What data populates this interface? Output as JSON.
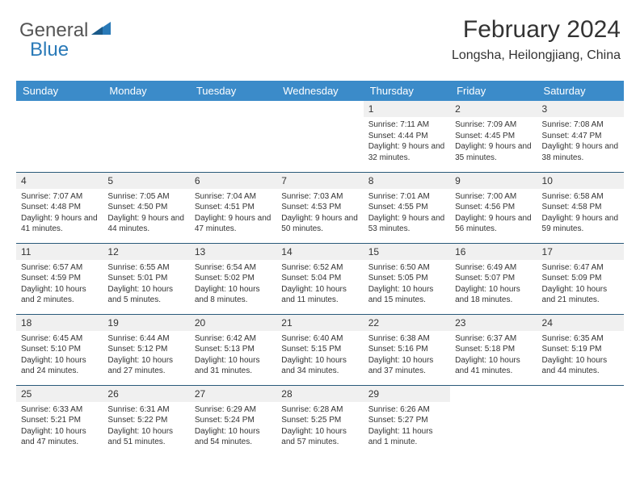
{
  "logo": {
    "text1": "General",
    "text2": "Blue"
  },
  "header": {
    "title": "February 2024",
    "location": "Longsha, Heilongjiang, China"
  },
  "colors": {
    "header_bg": "#3b8bc9",
    "header_text": "#ffffff",
    "row_divider": "#2a5a7a",
    "daynum_bg": "#f0f0f0",
    "logo_blue": "#2a7ab8"
  },
  "weekdays": [
    "Sunday",
    "Monday",
    "Tuesday",
    "Wednesday",
    "Thursday",
    "Friday",
    "Saturday"
  ],
  "weeks": [
    [
      {
        "empty": true
      },
      {
        "empty": true
      },
      {
        "empty": true
      },
      {
        "empty": true
      },
      {
        "num": "1",
        "sunrise": "7:11 AM",
        "sunset": "4:44 PM",
        "daylight": "9 hours and 32 minutes."
      },
      {
        "num": "2",
        "sunrise": "7:09 AM",
        "sunset": "4:45 PM",
        "daylight": "9 hours and 35 minutes."
      },
      {
        "num": "3",
        "sunrise": "7:08 AM",
        "sunset": "4:47 PM",
        "daylight": "9 hours and 38 minutes."
      }
    ],
    [
      {
        "num": "4",
        "sunrise": "7:07 AM",
        "sunset": "4:48 PM",
        "daylight": "9 hours and 41 minutes."
      },
      {
        "num": "5",
        "sunrise": "7:05 AM",
        "sunset": "4:50 PM",
        "daylight": "9 hours and 44 minutes."
      },
      {
        "num": "6",
        "sunrise": "7:04 AM",
        "sunset": "4:51 PM",
        "daylight": "9 hours and 47 minutes."
      },
      {
        "num": "7",
        "sunrise": "7:03 AM",
        "sunset": "4:53 PM",
        "daylight": "9 hours and 50 minutes."
      },
      {
        "num": "8",
        "sunrise": "7:01 AM",
        "sunset": "4:55 PM",
        "daylight": "9 hours and 53 minutes."
      },
      {
        "num": "9",
        "sunrise": "7:00 AM",
        "sunset": "4:56 PM",
        "daylight": "9 hours and 56 minutes."
      },
      {
        "num": "10",
        "sunrise": "6:58 AM",
        "sunset": "4:58 PM",
        "daylight": "9 hours and 59 minutes."
      }
    ],
    [
      {
        "num": "11",
        "sunrise": "6:57 AM",
        "sunset": "4:59 PM",
        "daylight": "10 hours and 2 minutes."
      },
      {
        "num": "12",
        "sunrise": "6:55 AM",
        "sunset": "5:01 PM",
        "daylight": "10 hours and 5 minutes."
      },
      {
        "num": "13",
        "sunrise": "6:54 AM",
        "sunset": "5:02 PM",
        "daylight": "10 hours and 8 minutes."
      },
      {
        "num": "14",
        "sunrise": "6:52 AM",
        "sunset": "5:04 PM",
        "daylight": "10 hours and 11 minutes."
      },
      {
        "num": "15",
        "sunrise": "6:50 AM",
        "sunset": "5:05 PM",
        "daylight": "10 hours and 15 minutes."
      },
      {
        "num": "16",
        "sunrise": "6:49 AM",
        "sunset": "5:07 PM",
        "daylight": "10 hours and 18 minutes."
      },
      {
        "num": "17",
        "sunrise": "6:47 AM",
        "sunset": "5:09 PM",
        "daylight": "10 hours and 21 minutes."
      }
    ],
    [
      {
        "num": "18",
        "sunrise": "6:45 AM",
        "sunset": "5:10 PM",
        "daylight": "10 hours and 24 minutes."
      },
      {
        "num": "19",
        "sunrise": "6:44 AM",
        "sunset": "5:12 PM",
        "daylight": "10 hours and 27 minutes."
      },
      {
        "num": "20",
        "sunrise": "6:42 AM",
        "sunset": "5:13 PM",
        "daylight": "10 hours and 31 minutes."
      },
      {
        "num": "21",
        "sunrise": "6:40 AM",
        "sunset": "5:15 PM",
        "daylight": "10 hours and 34 minutes."
      },
      {
        "num": "22",
        "sunrise": "6:38 AM",
        "sunset": "5:16 PM",
        "daylight": "10 hours and 37 minutes."
      },
      {
        "num": "23",
        "sunrise": "6:37 AM",
        "sunset": "5:18 PM",
        "daylight": "10 hours and 41 minutes."
      },
      {
        "num": "24",
        "sunrise": "6:35 AM",
        "sunset": "5:19 PM",
        "daylight": "10 hours and 44 minutes."
      }
    ],
    [
      {
        "num": "25",
        "sunrise": "6:33 AM",
        "sunset": "5:21 PM",
        "daylight": "10 hours and 47 minutes."
      },
      {
        "num": "26",
        "sunrise": "6:31 AM",
        "sunset": "5:22 PM",
        "daylight": "10 hours and 51 minutes."
      },
      {
        "num": "27",
        "sunrise": "6:29 AM",
        "sunset": "5:24 PM",
        "daylight": "10 hours and 54 minutes."
      },
      {
        "num": "28",
        "sunrise": "6:28 AM",
        "sunset": "5:25 PM",
        "daylight": "10 hours and 57 minutes."
      },
      {
        "num": "29",
        "sunrise": "6:26 AM",
        "sunset": "5:27 PM",
        "daylight": "11 hours and 1 minute."
      },
      {
        "empty": true
      },
      {
        "empty": true
      }
    ]
  ]
}
